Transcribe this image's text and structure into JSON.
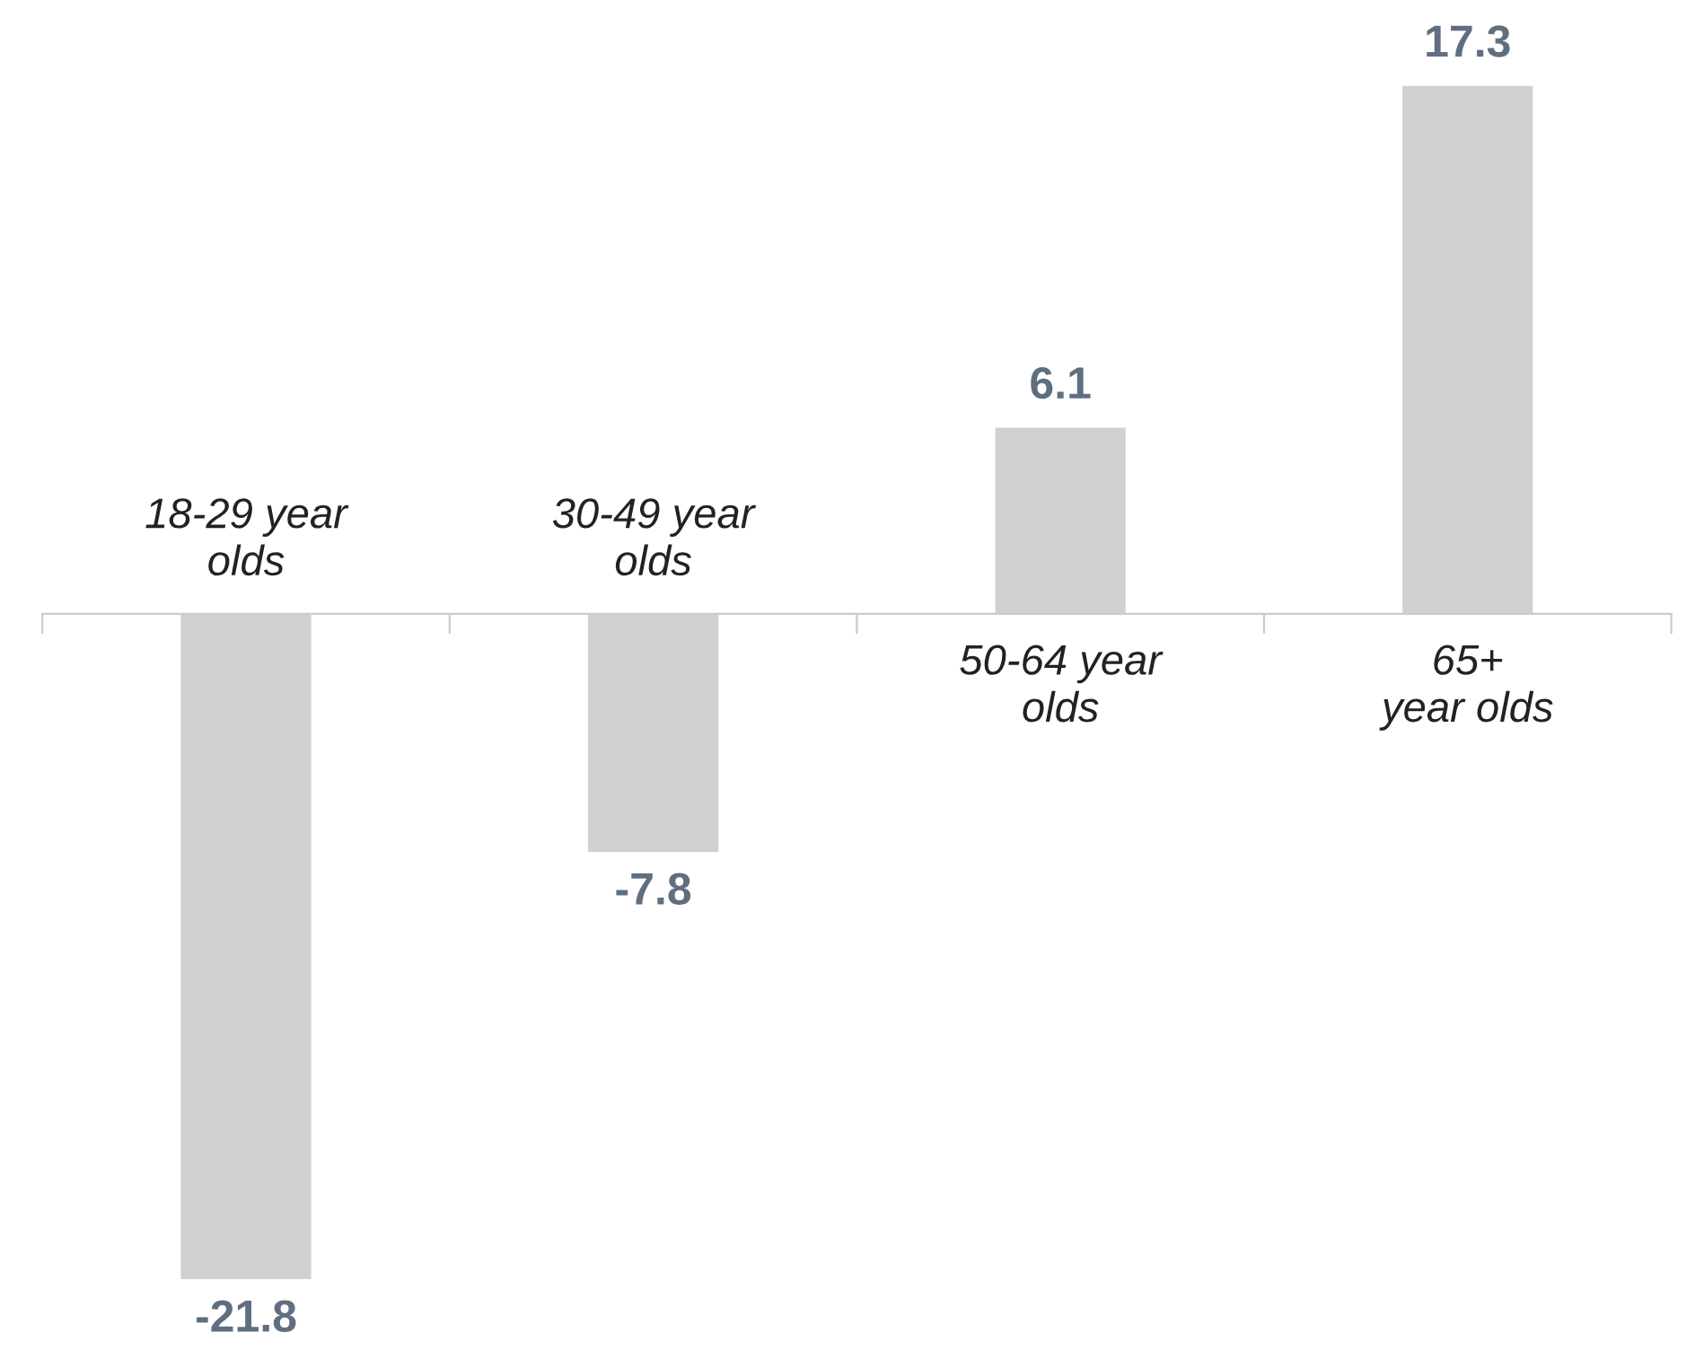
{
  "chart_data": {
    "type": "bar",
    "categories": [
      "18-29 year\nolds",
      "30-49 year\nolds",
      "50-64 year\nolds",
      "65+\nyear olds"
    ],
    "values": [
      -21.8,
      -7.8,
      6.1,
      17.3
    ],
    "color": "#d0d0d0",
    "data_labels": true,
    "grid": false,
    "legend": false
  }
}
